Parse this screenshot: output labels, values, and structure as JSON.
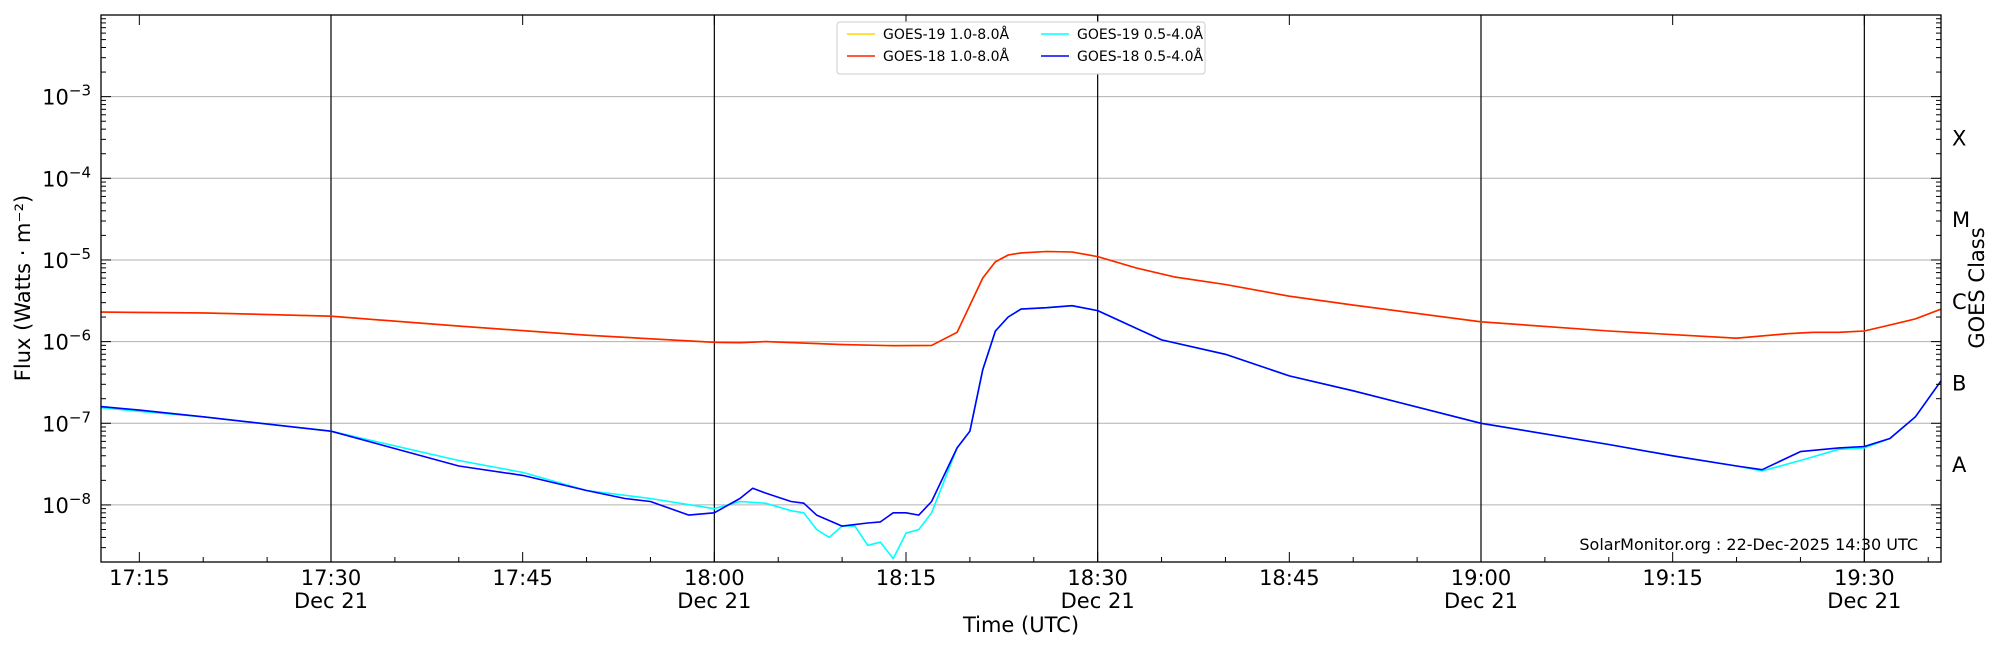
{
  "chart_data": {
    "type": "line",
    "xlabel": "Time (UTC)",
    "ylabel": "Flux (Watts · m⁻²)",
    "y2label": "GOES Class",
    "yscale": "log",
    "xlim": [
      "17:12",
      "19:36"
    ],
    "ylim": [
      2e-09,
      0.01
    ],
    "grid": "horizontal",
    "legend_position": "top-center",
    "credit": "SolarMonitor.org : 22-Dec-2025 14:30 UTC",
    "x_ticks": [
      {
        "time": "17:15",
        "label": "17:15",
        "sublabel": ""
      },
      {
        "time": "17:30",
        "label": "17:30",
        "sublabel": "Dec 21"
      },
      {
        "time": "17:45",
        "label": "17:45",
        "sublabel": ""
      },
      {
        "time": "18:00",
        "label": "18:00",
        "sublabel": "Dec 21"
      },
      {
        "time": "18:15",
        "label": "18:15",
        "sublabel": ""
      },
      {
        "time": "18:30",
        "label": "18:30",
        "sublabel": "Dec 21"
      },
      {
        "time": "18:45",
        "label": "18:45",
        "sublabel": ""
      },
      {
        "time": "19:00",
        "label": "19:00",
        "sublabel": "Dec 21"
      },
      {
        "time": "19:15",
        "label": "19:15",
        "sublabel": ""
      },
      {
        "time": "19:30",
        "label": "19:30",
        "sublabel": "Dec 21"
      }
    ],
    "vertical_lines": [
      "17:30",
      "18:00",
      "18:30",
      "19:00",
      "19:30"
    ],
    "y_ticks": [
      {
        "value": 1e-08,
        "base": "10",
        "exp": "−8"
      },
      {
        "value": 1e-07,
        "base": "10",
        "exp": "−7"
      },
      {
        "value": 1e-06,
        "base": "10",
        "exp": "−6"
      },
      {
        "value": 1e-05,
        "base": "10",
        "exp": "−5"
      },
      {
        "value": 0.0001,
        "base": "10",
        "exp": "−4"
      },
      {
        "value": 0.001,
        "base": "10",
        "exp": "−3"
      }
    ],
    "goes_classes": [
      {
        "label": "A",
        "value": 3.16e-08
      },
      {
        "label": "B",
        "value": 3.16e-07
      },
      {
        "label": "C",
        "value": 3.16e-06
      },
      {
        "label": "M",
        "value": 3.16e-05
      },
      {
        "label": "X",
        "value": 0.000316
      }
    ],
    "series": [
      {
        "name": "GOES-19 1.0-8.0Å",
        "color": "#ffd700",
        "x": [
          "17:12",
          "17:20",
          "17:30",
          "17:40",
          "17:50",
          "18:00",
          "18:02",
          "18:04",
          "18:10",
          "18:14",
          "18:17",
          "18:19",
          "18:21",
          "18:22",
          "18:23",
          "18:24",
          "18:26",
          "18:28",
          "18:30",
          "18:33",
          "18:36",
          "18:40",
          "18:45",
          "18:50",
          "19:00",
          "19:10",
          "19:20",
          "19:24",
          "19:26",
          "19:28",
          "19:30",
          "19:32",
          "19:34",
          "19:36"
        ],
        "values": [
          2.3e-06,
          2.25e-06,
          2.05e-06,
          1.55e-06,
          1.2e-06,
          9.8e-07,
          9.7e-07,
          1e-06,
          9.2e-07,
          8.9e-07,
          9e-07,
          1.3e-06,
          6e-06,
          9.5e-06,
          1.15e-05,
          1.22e-05,
          1.27e-05,
          1.25e-05,
          1.1e-05,
          8e-06,
          6.2e-06,
          5e-06,
          3.6e-06,
          2.8e-06,
          1.75e-06,
          1.35e-06,
          1.1e-06,
          1.25e-06,
          1.3e-06,
          1.3e-06,
          1.35e-06,
          1.6e-06,
          1.9e-06,
          2.5e-06
        ]
      },
      {
        "name": "GOES-18 1.0-8.0Å",
        "color": "#ff2200",
        "x": [
          "17:12",
          "17:20",
          "17:30",
          "17:40",
          "17:50",
          "18:00",
          "18:02",
          "18:04",
          "18:10",
          "18:14",
          "18:17",
          "18:19",
          "18:21",
          "18:22",
          "18:23",
          "18:24",
          "18:26",
          "18:28",
          "18:30",
          "18:33",
          "18:36",
          "18:40",
          "18:45",
          "18:50",
          "19:00",
          "19:10",
          "19:20",
          "19:24",
          "19:26",
          "19:28",
          "19:30",
          "19:32",
          "19:34",
          "19:36"
        ],
        "values": [
          2.3e-06,
          2.25e-06,
          2.05e-06,
          1.55e-06,
          1.2e-06,
          9.8e-07,
          9.7e-07,
          1e-06,
          9.2e-07,
          8.9e-07,
          9e-07,
          1.3e-06,
          6e-06,
          9.5e-06,
          1.15e-05,
          1.22e-05,
          1.27e-05,
          1.25e-05,
          1.1e-05,
          8e-06,
          6.2e-06,
          5e-06,
          3.6e-06,
          2.8e-06,
          1.75e-06,
          1.35e-06,
          1.1e-06,
          1.25e-06,
          1.3e-06,
          1.3e-06,
          1.35e-06,
          1.6e-06,
          1.9e-06,
          2.5e-06
        ]
      },
      {
        "name": "GOES-19 0.5-4.0Å",
        "color": "#00ffff",
        "x": [
          "17:12",
          "17:15",
          "17:20",
          "17:30",
          "17:40",
          "17:45",
          "17:50",
          "17:55",
          "18:00",
          "18:02",
          "18:04",
          "18:06",
          "18:07",
          "18:08",
          "18:09",
          "18:10",
          "18:11",
          "18:12",
          "18:13",
          "18:14",
          "18:15",
          "18:16",
          "18:17",
          "18:19",
          "18:20",
          "18:21",
          "18:22",
          "18:23",
          "18:24",
          "18:26",
          "18:28",
          "18:30",
          "18:35",
          "18:40",
          "18:45",
          "18:50",
          "19:00",
          "19:10",
          "19:15",
          "19:20",
          "19:22",
          "19:25",
          "19:28",
          "19:30",
          "19:32",
          "19:34",
          "19:36"
        ],
        "values": [
          1.55e-07,
          1.4e-07,
          1.2e-07,
          8e-08,
          3.5e-08,
          2.5e-08,
          1.5e-08,
          1.2e-08,
          9e-09,
          1.1e-08,
          1.05e-08,
          8.5e-09,
          8e-09,
          5e-09,
          4e-09,
          5.5e-09,
          5.5e-09,
          3.2e-09,
          3.5e-09,
          2.2e-09,
          4.5e-09,
          5e-09,
          8e-09,
          5e-08,
          8e-08,
          4.5e-07,
          1.35e-06,
          2e-06,
          2.5e-06,
          2.6e-06,
          2.75e-06,
          2.4e-06,
          1.05e-06,
          7e-07,
          3.8e-07,
          2.5e-07,
          1e-07,
          5.5e-08,
          4e-08,
          3e-08,
          2.6e-08,
          3.5e-08,
          4.8e-08,
          5e-08,
          6.5e-08,
          1.2e-07,
          3.3e-07
        ]
      },
      {
        "name": "GOES-18 0.5-4.0Å",
        "color": "#0000ff",
        "x": [
          "17:12",
          "17:15",
          "17:20",
          "17:30",
          "17:40",
          "17:45",
          "17:50",
          "17:53",
          "17:55",
          "17:58",
          "18:00",
          "18:02",
          "18:03",
          "18:04",
          "18:06",
          "18:07",
          "18:08",
          "18:10",
          "18:12",
          "18:13",
          "18:14",
          "18:15",
          "18:16",
          "18:17",
          "18:19",
          "18:20",
          "18:21",
          "18:22",
          "18:23",
          "18:24",
          "18:26",
          "18:28",
          "18:30",
          "18:35",
          "18:40",
          "18:45",
          "18:50",
          "19:00",
          "19:10",
          "19:15",
          "19:20",
          "19:22",
          "19:25",
          "19:28",
          "19:30",
          "19:32",
          "19:34",
          "19:36"
        ],
        "values": [
          1.6e-07,
          1.45e-07,
          1.2e-07,
          8e-08,
          3e-08,
          2.3e-08,
          1.5e-08,
          1.2e-08,
          1.1e-08,
          7.5e-09,
          8e-09,
          1.2e-08,
          1.6e-08,
          1.4e-08,
          1.1e-08,
          1.05e-08,
          7.5e-09,
          5.5e-09,
          6e-09,
          6.2e-09,
          8e-09,
          8e-09,
          7.5e-09,
          1.1e-08,
          5e-08,
          8e-08,
          4.5e-07,
          1.35e-06,
          2e-06,
          2.5e-06,
          2.6e-06,
          2.75e-06,
          2.4e-06,
          1.05e-06,
          7e-07,
          3.8e-07,
          2.5e-07,
          1e-07,
          5.5e-08,
          4e-08,
          3e-08,
          2.7e-08,
          4.5e-08,
          5e-08,
          5.2e-08,
          6.5e-08,
          1.2e-07,
          3.3e-07
        ]
      }
    ]
  }
}
